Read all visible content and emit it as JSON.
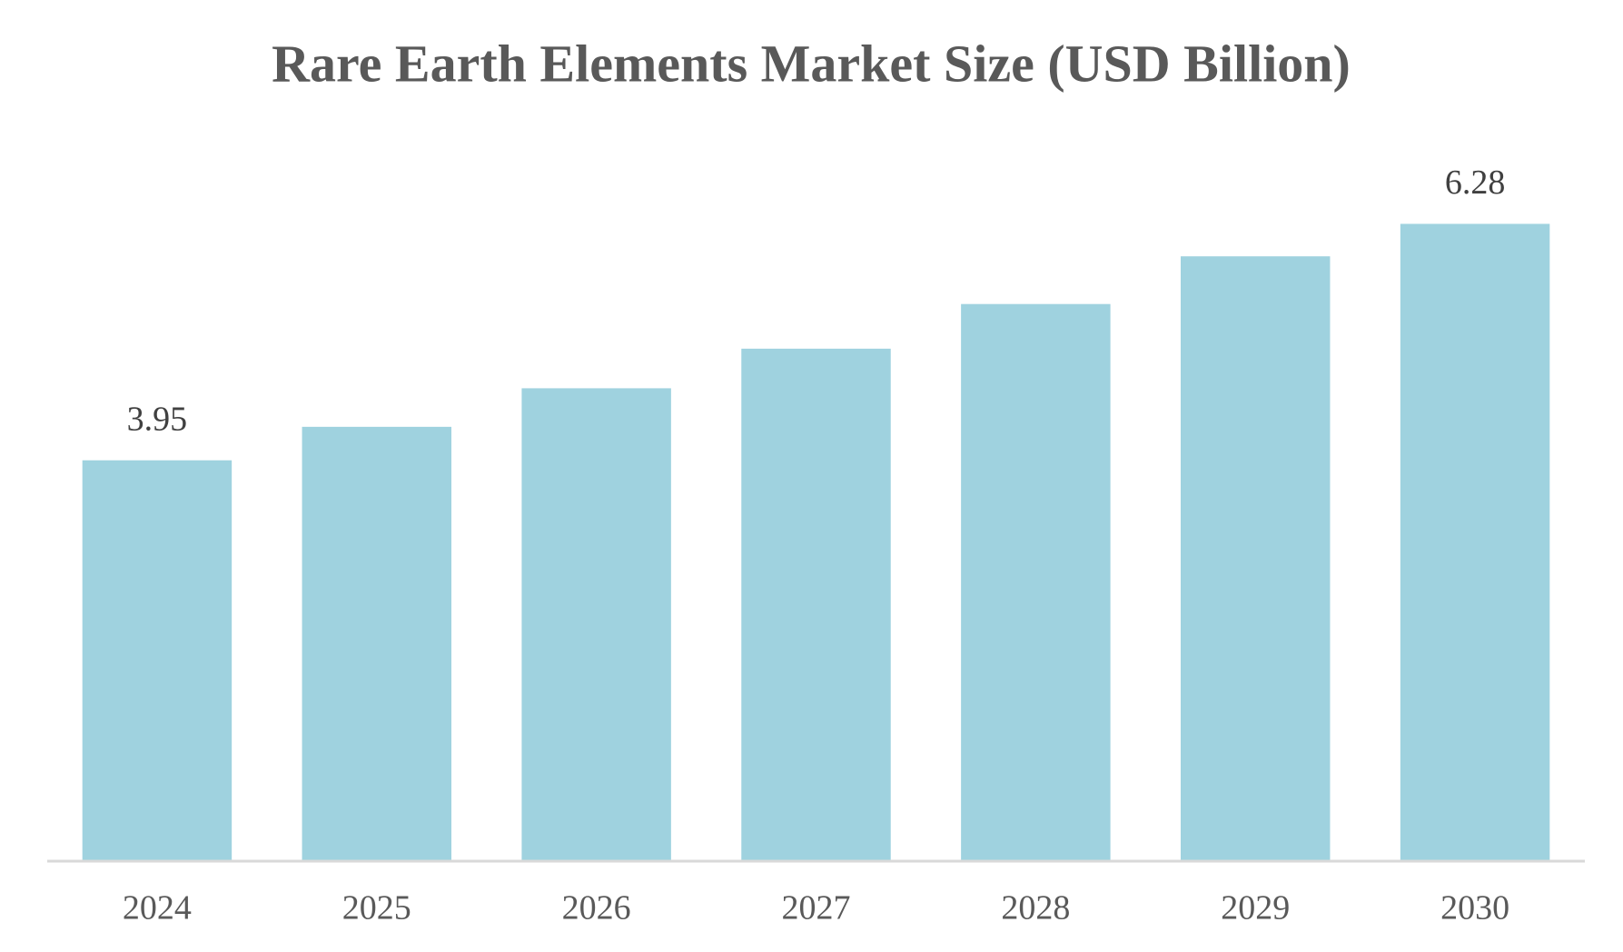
{
  "chart_data": {
    "type": "bar",
    "title": "Rare Earth Elements Market Size (USD Billion)",
    "categories": [
      "2024",
      "2025",
      "2026",
      "2027",
      "2028",
      "2029",
      "2030"
    ],
    "values": [
      3.95,
      4.28,
      4.66,
      5.05,
      5.49,
      5.96,
      6.28
    ],
    "value_labels": [
      "3.95",
      null,
      null,
      null,
      null,
      null,
      "6.28"
    ],
    "color": "#9fd2df",
    "ylim": [
      0,
      7
    ]
  }
}
